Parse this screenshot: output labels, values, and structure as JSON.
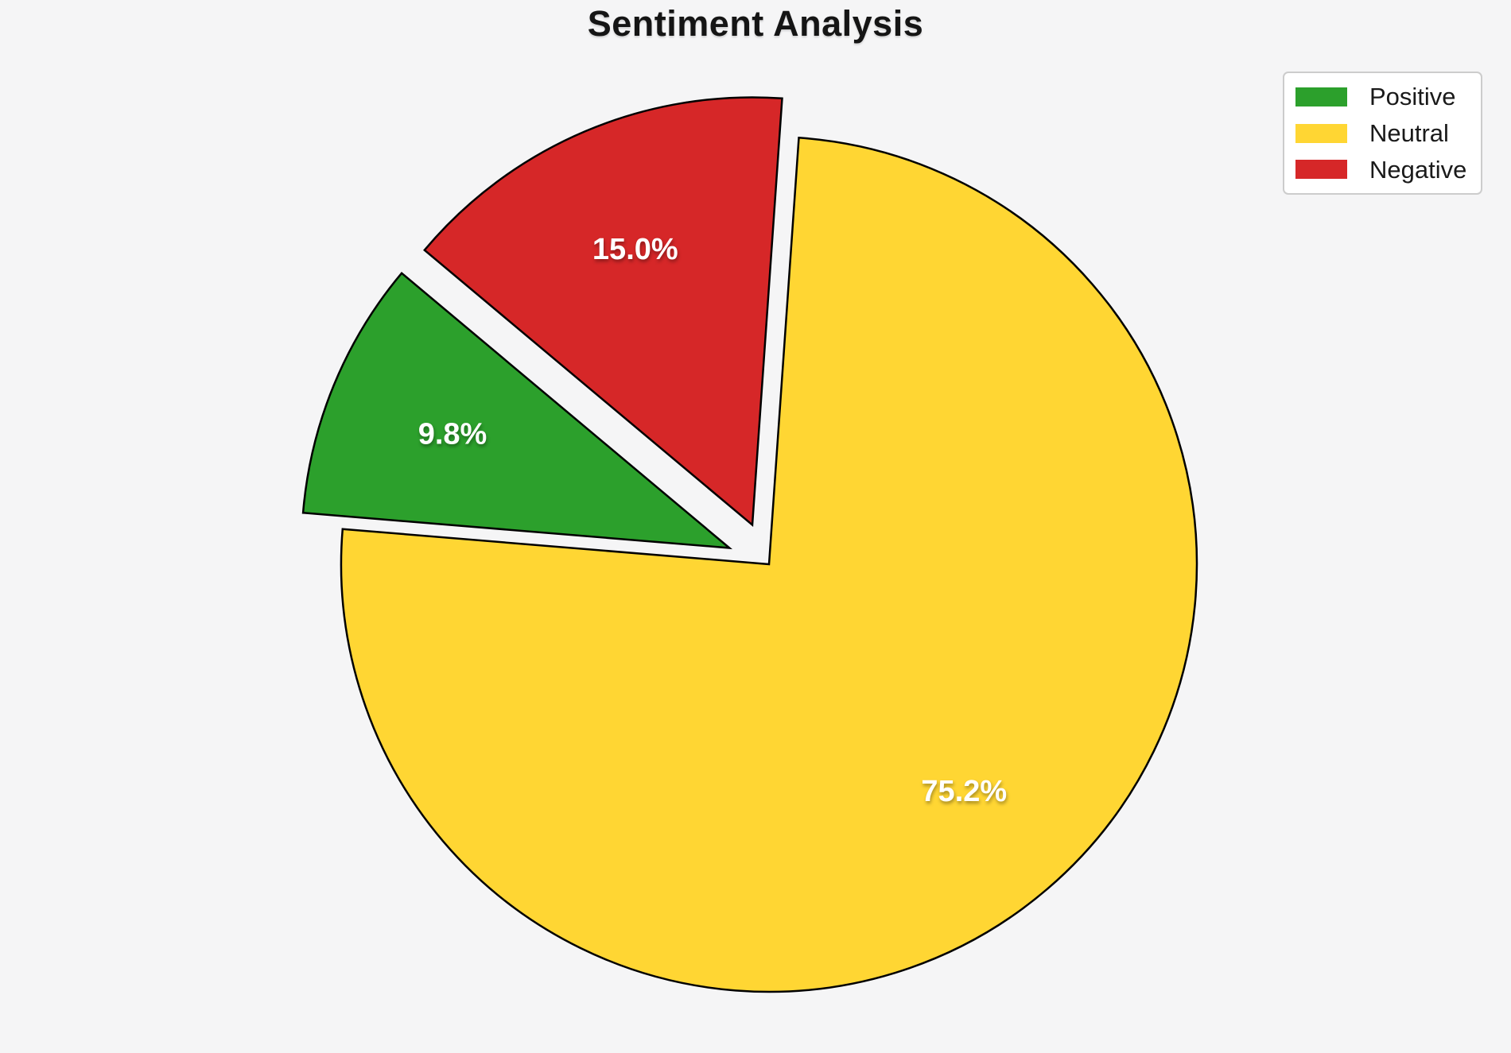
{
  "chart_data": {
    "type": "pie",
    "title": "Sentiment Analysis",
    "categories": [
      "Positive",
      "Neutral",
      "Negative"
    ],
    "values": [
      9.8,
      75.2,
      15.0
    ],
    "slice_labels": [
      "9.8%",
      "75.2%",
      "15.0%"
    ],
    "colors": [
      "#2ca02c",
      "#ffd633",
      "#d62728"
    ],
    "start_angle_deg": 140,
    "direction": "counterclockwise",
    "explode": [
      0.1,
      0,
      0.1
    ],
    "pct_distance": 0.7,
    "edge_color": "#000000",
    "label_color": "#ffffff",
    "background": "#f5f5f6",
    "legend": {
      "position": "upper-right",
      "entries": [
        "Positive",
        "Neutral",
        "Negative"
      ]
    }
  }
}
